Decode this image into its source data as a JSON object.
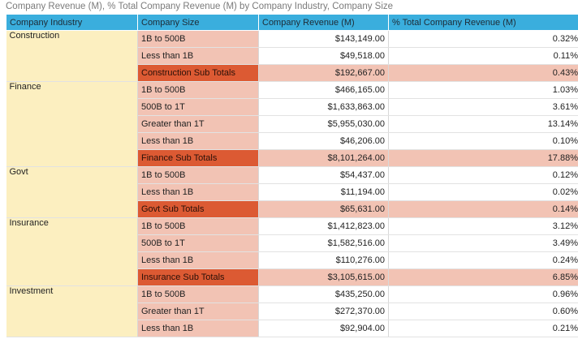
{
  "title": "Company Revenue (M), % Total Company Revenue (M) by Company Industry, Company Size",
  "columns": {
    "industry": "Company Industry",
    "size": "Company Size",
    "revenue": "Company Revenue (M)",
    "pct": "% Total Company Revenue (M)"
  },
  "colors": {
    "header": "#3aaedd",
    "industry_cell": "#fcefc0",
    "size_cell": "#f2c3b4",
    "subtotal_label": "#dc5a33",
    "subtotal_row": "#f2c3b4"
  },
  "groups": [
    {
      "industry": "Construction",
      "rows": [
        {
          "size": "1B to 500B",
          "revenue": "$143,149.00",
          "pct": "0.32%"
        },
        {
          "size": "Less than 1B",
          "revenue": "$49,518.00",
          "pct": "0.11%"
        },
        {
          "size": "Construction Sub Totals",
          "revenue": "$192,667.00",
          "pct": "0.43%",
          "subtotal": true
        }
      ]
    },
    {
      "industry": "Finance",
      "rows": [
        {
          "size": "1B to 500B",
          "revenue": "$466,165.00",
          "pct": "1.03%"
        },
        {
          "size": "500B to 1T",
          "revenue": "$1,633,863.00",
          "pct": "3.61%"
        },
        {
          "size": "Greater than 1T",
          "revenue": "$5,955,030.00",
          "pct": "13.14%"
        },
        {
          "size": "Less than 1B",
          "revenue": "$46,206.00",
          "pct": "0.10%"
        },
        {
          "size": "Finance Sub Totals",
          "revenue": "$8,101,264.00",
          "pct": "17.88%",
          "subtotal": true
        }
      ]
    },
    {
      "industry": "Govt",
      "rows": [
        {
          "size": "1B to 500B",
          "revenue": "$54,437.00",
          "pct": "0.12%"
        },
        {
          "size": "Less than 1B",
          "revenue": "$11,194.00",
          "pct": "0.02%"
        },
        {
          "size": "Govt Sub Totals",
          "revenue": "$65,631.00",
          "pct": "0.14%",
          "subtotal": true
        }
      ]
    },
    {
      "industry": "Insurance",
      "rows": [
        {
          "size": "1B to 500B",
          "revenue": "$1,412,823.00",
          "pct": "3.12%"
        },
        {
          "size": "500B to 1T",
          "revenue": "$1,582,516.00",
          "pct": "3.49%"
        },
        {
          "size": "Less than 1B",
          "revenue": "$110,276.00",
          "pct": "0.24%"
        },
        {
          "size": "Insurance Sub Totals",
          "revenue": "$3,105,615.00",
          "pct": "6.85%",
          "subtotal": true
        }
      ]
    },
    {
      "industry": "Investment",
      "rows": [
        {
          "size": "1B to 500B",
          "revenue": "$435,250.00",
          "pct": "0.96%"
        },
        {
          "size": "Greater than 1T",
          "revenue": "$272,370.00",
          "pct": "0.60%"
        },
        {
          "size": "Less than 1B",
          "revenue": "$92,904.00",
          "pct": "0.21%"
        }
      ]
    }
  ]
}
